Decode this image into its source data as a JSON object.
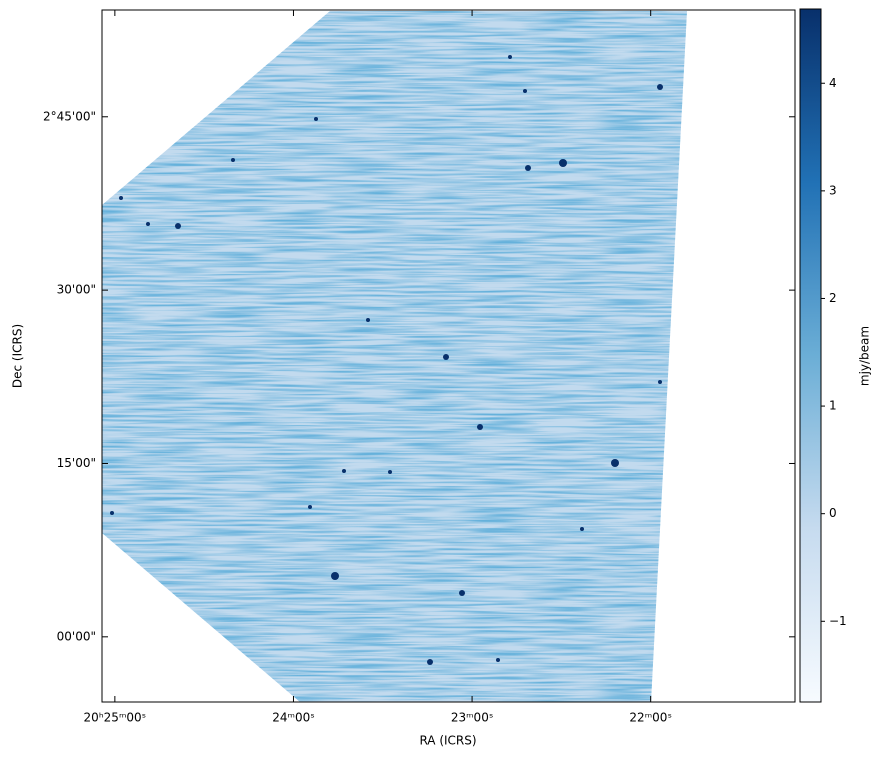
{
  "chart_data": {
    "type": "image",
    "xlabel": "RA (ICRS)",
    "ylabel": "Dec (ICRS)",
    "xlim": [
      306.268,
      305.298
    ],
    "xticks": [
      {
        "value": 306.25,
        "label": "20ʰ25ᵐ00ˢ"
      },
      {
        "value": 306.0,
        "label": "24ᵐ00ˢ"
      },
      {
        "value": 305.75,
        "label": "23ᵐ00ˢ"
      },
      {
        "value": 305.5,
        "label": "22ᵐ00ˢ"
      }
    ],
    "ylim": [
      1.906,
      2.904
    ],
    "yticks": [
      {
        "value": 2.75,
        "label": "2°45'00\""
      },
      {
        "value": 2.5,
        "label": "30'00\""
      },
      {
        "value": 2.25,
        "label": "15'00\""
      },
      {
        "value": 2.0,
        "label": "00'00\""
      }
    ],
    "colorbar": {
      "label": "mjy/beam",
      "clim": [
        -1.75,
        4.69
      ],
      "ticks": [
        {
          "value": -1,
          "label": "−1"
        },
        0,
        1,
        2,
        3,
        4
      ],
      "colormap": "Blues"
    }
  }
}
